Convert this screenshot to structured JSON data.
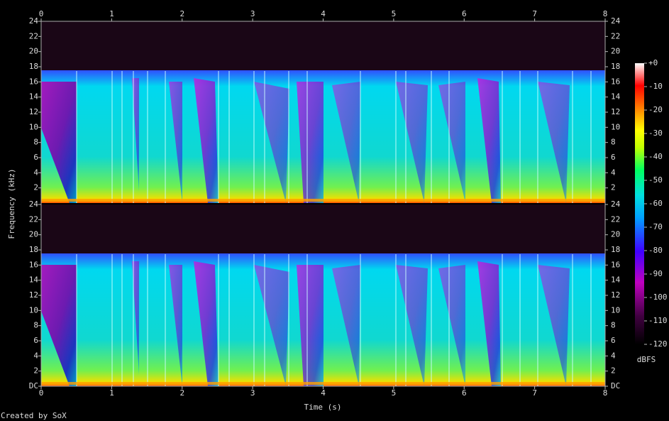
{
  "chart_data": {
    "type": "spectrogram",
    "xlabel": "Time (s)",
    "ylabel": "Frequency (kHz)",
    "xlim": [
      0,
      8
    ],
    "xticks": [
      0,
      1,
      2,
      3,
      4,
      5,
      6,
      7,
      8
    ],
    "channels": [
      {
        "ylim": [
          0,
          24
        ],
        "yticks": [
          2,
          4,
          6,
          8,
          10,
          12,
          14,
          16,
          18,
          20,
          22,
          24
        ]
      },
      {
        "ylim": [
          0,
          24
        ],
        "yticks": [
          {
            "value": 0,
            "label": "DC"
          },
          2,
          4,
          6,
          8,
          10,
          12,
          14,
          16,
          18,
          20,
          22,
          24
        ]
      }
    ],
    "colorbar": {
      "label": "dBFS",
      "clim": [
        -120,
        0
      ],
      "ticks": [
        {
          "value": 0,
          "label": "+0"
        },
        -10,
        -20,
        -30,
        -40,
        -50,
        -60,
        -70,
        -80,
        -90,
        -100,
        -110,
        -120
      ]
    }
  },
  "footer": "Created by SoX"
}
